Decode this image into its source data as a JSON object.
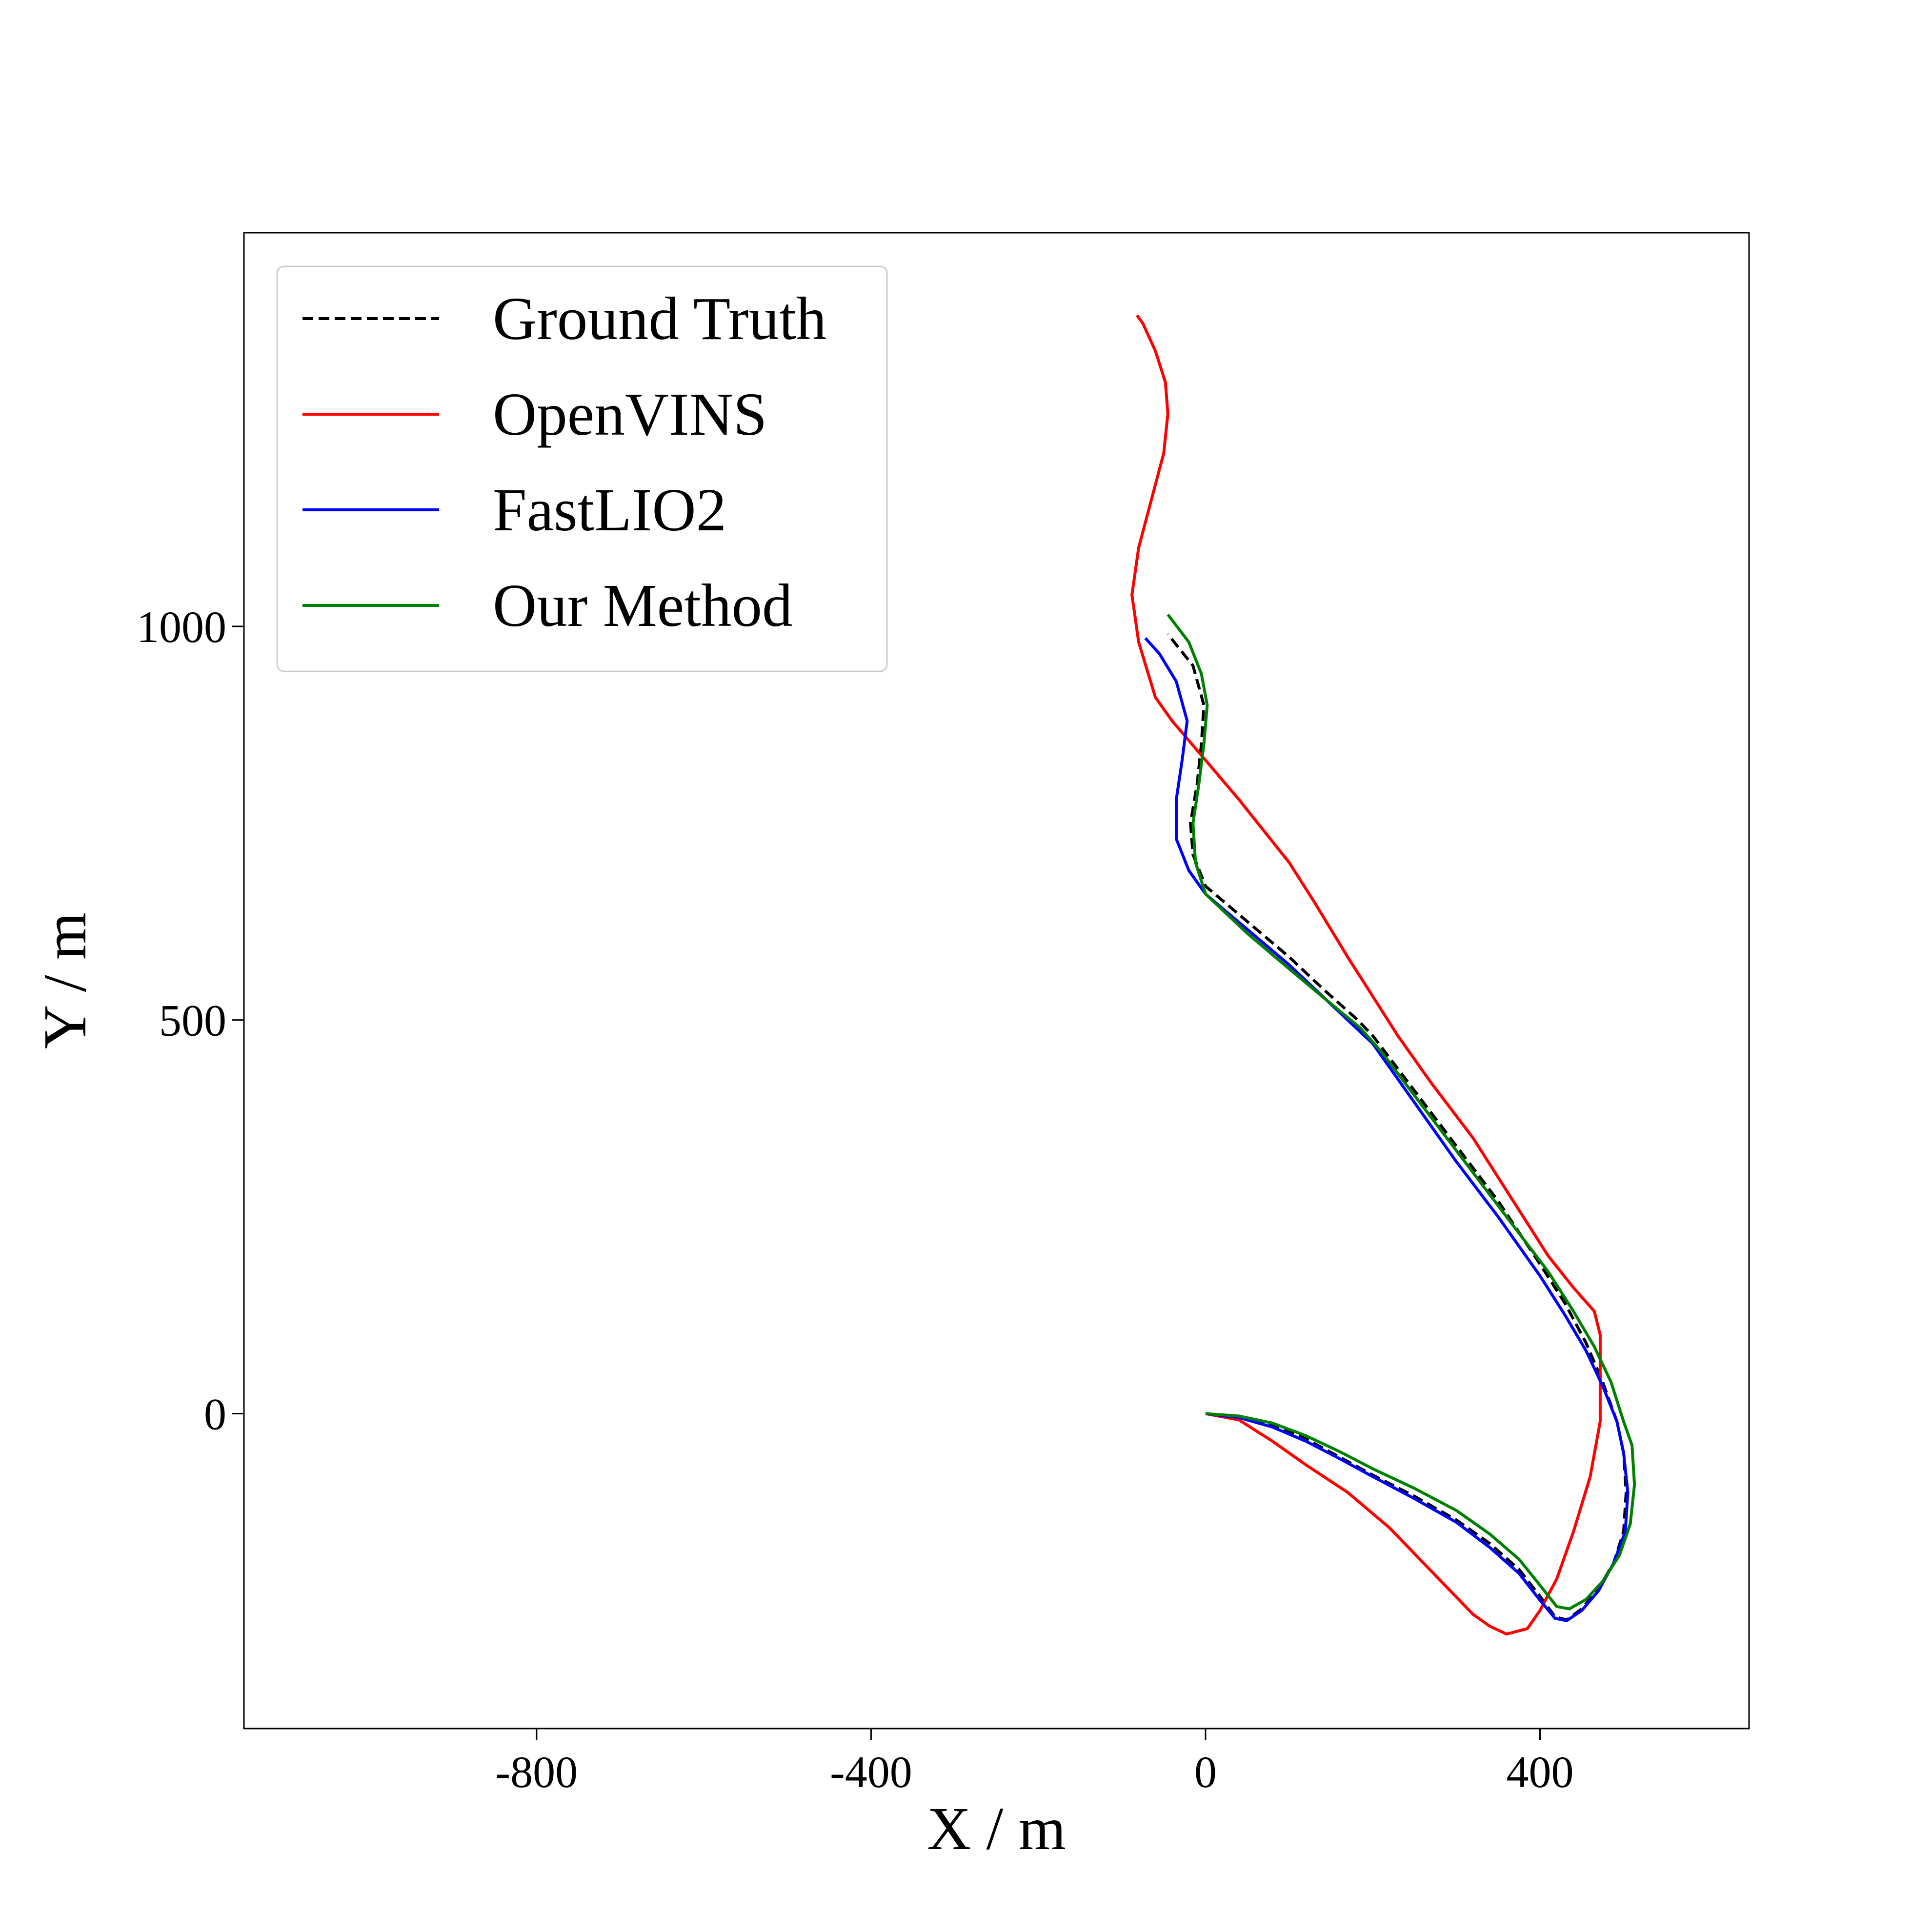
{
  "chart_data": {
    "type": "line",
    "title": "",
    "xlabel": "X / m",
    "ylabel": "Y / m",
    "xlim": [
      -1150,
      650
    ],
    "ylim": [
      -400,
      1500
    ],
    "xticks": [
      -800,
      -400,
      0,
      400
    ],
    "xtick_labels": [
      "-800",
      "-400",
      "0",
      "400"
    ],
    "yticks": [
      0,
      500,
      1000
    ],
    "ytick_labels": [
      "0",
      "500",
      "1000"
    ],
    "grid": false,
    "legend_position": "top-left",
    "series": [
      {
        "name": "Ground Truth",
        "color": "#000000",
        "dashed": true,
        "points": [
          [
            0,
            0
          ],
          [
            40,
            -4
          ],
          [
            80,
            -15
          ],
          [
            120,
            -32
          ],
          [
            160,
            -55
          ],
          [
            200,
            -78
          ],
          [
            250,
            -105
          ],
          [
            300,
            -135
          ],
          [
            340,
            -165
          ],
          [
            375,
            -198
          ],
          [
            400,
            -232
          ],
          [
            418,
            -258
          ],
          [
            432,
            -262
          ],
          [
            450,
            -248
          ],
          [
            470,
            -222
          ],
          [
            488,
            -190
          ],
          [
            500,
            -150
          ],
          [
            503,
            -100
          ],
          [
            500,
            -50
          ],
          [
            492,
            -10
          ],
          [
            475,
            40
          ],
          [
            455,
            90
          ],
          [
            430,
            140
          ],
          [
            400,
            190
          ],
          [
            350,
            270
          ],
          [
            300,
            340
          ],
          [
            250,
            410
          ],
          [
            200,
            480
          ],
          [
            182,
            500
          ],
          [
            140,
            540
          ],
          [
            100,
            580
          ],
          [
            50,
            625
          ],
          [
            0,
            670
          ],
          [
            -15,
            710
          ],
          [
            -18,
            750
          ],
          [
            -10,
            800
          ],
          [
            -5,
            850
          ],
          [
            -2,
            900
          ],
          [
            -15,
            950
          ],
          [
            -45,
            990
          ]
        ]
      },
      {
        "name": "OpenVINS",
        "color": "#ff0000",
        "dashed": false,
        "points": [
          [
            0,
            0
          ],
          [
            40,
            -8
          ],
          [
            80,
            -35
          ],
          [
            120,
            -65
          ],
          [
            170,
            -100
          ],
          [
            220,
            -145
          ],
          [
            270,
            -200
          ],
          [
            320,
            -255
          ],
          [
            340,
            -270
          ],
          [
            360,
            -280
          ],
          [
            385,
            -273
          ],
          [
            400,
            -250
          ],
          [
            420,
            -210
          ],
          [
            440,
            -150
          ],
          [
            460,
            -80
          ],
          [
            472,
            -10
          ],
          [
            472,
            50
          ],
          [
            472,
            100
          ],
          [
            465,
            130
          ],
          [
            440,
            160
          ],
          [
            410,
            200
          ],
          [
            380,
            250
          ],
          [
            350,
            300
          ],
          [
            320,
            350
          ],
          [
            270,
            420
          ],
          [
            230,
            480
          ],
          [
            200,
            530
          ],
          [
            170,
            580
          ],
          [
            130,
            650
          ],
          [
            100,
            700
          ],
          [
            70,
            740
          ],
          [
            40,
            780
          ],
          [
            0,
            830
          ],
          [
            -40,
            880
          ],
          [
            -60,
            910
          ],
          [
            -80,
            980
          ],
          [
            -88,
            1040
          ],
          [
            -80,
            1100
          ],
          [
            -65,
            1160
          ],
          [
            -50,
            1220
          ],
          [
            -45,
            1270
          ],
          [
            -48,
            1310
          ],
          [
            -60,
            1350
          ],
          [
            -75,
            1385
          ],
          [
            -82,
            1395
          ]
        ]
      },
      {
        "name": "FastLIO2",
        "color": "#0000ff",
        "dashed": false,
        "points": [
          [
            0,
            0
          ],
          [
            40,
            -5
          ],
          [
            80,
            -17
          ],
          [
            120,
            -35
          ],
          [
            160,
            -57
          ],
          [
            200,
            -80
          ],
          [
            250,
            -108
          ],
          [
            300,
            -138
          ],
          [
            340,
            -170
          ],
          [
            375,
            -203
          ],
          [
            400,
            -237
          ],
          [
            418,
            -260
          ],
          [
            432,
            -263
          ],
          [
            450,
            -250
          ],
          [
            470,
            -225
          ],
          [
            488,
            -190
          ],
          [
            502,
            -150
          ],
          [
            505,
            -100
          ],
          [
            500,
            -50
          ],
          [
            492,
            -10
          ],
          [
            475,
            35
          ],
          [
            455,
            80
          ],
          [
            430,
            125
          ],
          [
            400,
            175
          ],
          [
            350,
            250
          ],
          [
            300,
            320
          ],
          [
            250,
            395
          ],
          [
            200,
            470
          ],
          [
            185,
            485
          ],
          [
            140,
            530
          ],
          [
            100,
            570
          ],
          [
            50,
            615
          ],
          [
            0,
            660
          ],
          [
            -20,
            690
          ],
          [
            -35,
            730
          ],
          [
            -35,
            780
          ],
          [
            -28,
            830
          ],
          [
            -22,
            880
          ],
          [
            -35,
            930
          ],
          [
            -55,
            965
          ],
          [
            -72,
            985
          ]
        ]
      },
      {
        "name": "Our Method",
        "color": "#008000",
        "dashed": false,
        "points": [
          [
            0,
            0
          ],
          [
            40,
            -3
          ],
          [
            80,
            -12
          ],
          [
            120,
            -28
          ],
          [
            160,
            -48
          ],
          [
            200,
            -70
          ],
          [
            250,
            -95
          ],
          [
            300,
            -123
          ],
          [
            340,
            -153
          ],
          [
            375,
            -185
          ],
          [
            400,
            -218
          ],
          [
            420,
            -245
          ],
          [
            435,
            -248
          ],
          [
            455,
            -236
          ],
          [
            475,
            -213
          ],
          [
            495,
            -180
          ],
          [
            508,
            -140
          ],
          [
            513,
            -90
          ],
          [
            510,
            -40
          ],
          [
            500,
            -10
          ],
          [
            485,
            40
          ],
          [
            465,
            85
          ],
          [
            440,
            130
          ],
          [
            410,
            180
          ],
          [
            360,
            250
          ],
          [
            310,
            320
          ],
          [
            260,
            390
          ],
          [
            210,
            460
          ],
          [
            185,
            490
          ],
          [
            145,
            525
          ],
          [
            100,
            565
          ],
          [
            50,
            610
          ],
          [
            0,
            660
          ],
          [
            -12,
            700
          ],
          [
            -15,
            750
          ],
          [
            -8,
            800
          ],
          [
            -2,
            850
          ],
          [
            2,
            900
          ],
          [
            -5,
            940
          ],
          [
            -20,
            980
          ],
          [
            -45,
            1015
          ]
        ]
      }
    ]
  }
}
